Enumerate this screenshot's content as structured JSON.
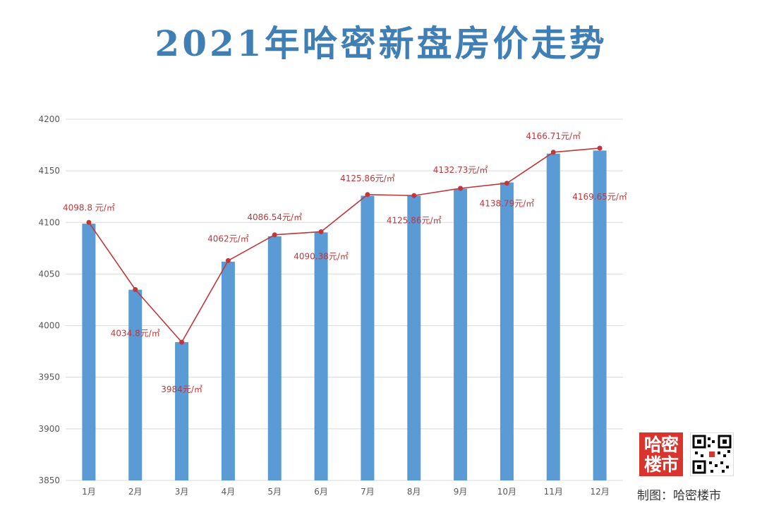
{
  "title": "2021年哈密新盘房价走势",
  "logo_text": "哈密楼市",
  "credit": "制图：哈密楼市",
  "colors": {
    "bar": "#5b9bd5",
    "line": "#c0373b",
    "label": "#c0373b",
    "grid": "#d9d9d9",
    "axis_text": "#595959",
    "title": "#3f7fb5"
  },
  "chart_data": {
    "type": "bar",
    "categories": [
      "1月",
      "2月",
      "3月",
      "4月",
      "5月",
      "6月",
      "7月",
      "8月",
      "9月",
      "10月",
      "11月",
      "12月"
    ],
    "values": [
      4098.8,
      4034.8,
      3984,
      4062,
      4086.54,
      4090.38,
      4125.86,
      4125.86,
      4132.73,
      4138.79,
      4166.71,
      4169.65
    ],
    "data_labels": [
      "4098.8 元/㎡",
      "4034.8元/㎡",
      "3984元/㎡",
      "4062元/㎡",
      "4086.54元/㎡",
      "4090.38元/㎡",
      "4125.86元/㎡",
      "4125.86元/㎡",
      "4132.73元/㎡",
      "4138.79元/㎡",
      "4166.71元/㎡",
      "4169.65元/㎡"
    ],
    "line_series": {
      "values": [
        4100,
        4035,
        3984,
        4063,
        4088,
        4091,
        4127,
        4126,
        4133,
        4138,
        4168,
        4172
      ]
    },
    "ylim": [
      3850,
      4200
    ],
    "yticks": [
      3850,
      3900,
      3950,
      4000,
      4050,
      4100,
      4150,
      4200
    ],
    "title": "2021年哈密新盘房价走势",
    "xlabel": "",
    "ylabel": "",
    "grid": true,
    "legend": "none"
  }
}
